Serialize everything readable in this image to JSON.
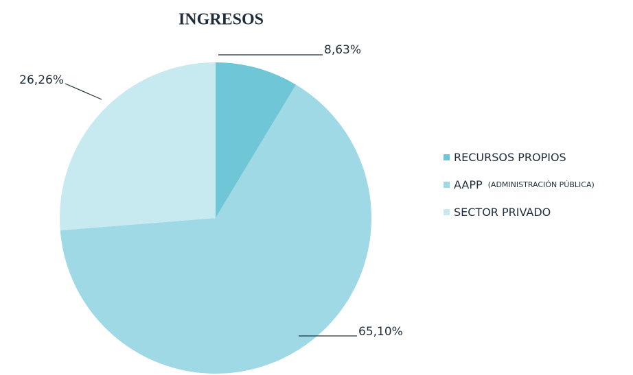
{
  "chart_data": {
    "type": "pie",
    "title": "INGRESOS",
    "categories": [
      "RECURSOS PROPIOS",
      "AAPP",
      "SECTOR PRIVADO"
    ],
    "category_notes": [
      null,
      "(ADMINISTRACIÓN PÚBLICA)",
      null
    ],
    "values": [
      8.63,
      65.1,
      26.26
    ],
    "value_labels": [
      "8,63%",
      "65,10%",
      "26,26%"
    ],
    "colors": [
      "#6fc6d7",
      "#a0d9e6",
      "#c7e9f0"
    ],
    "legend": "right"
  }
}
